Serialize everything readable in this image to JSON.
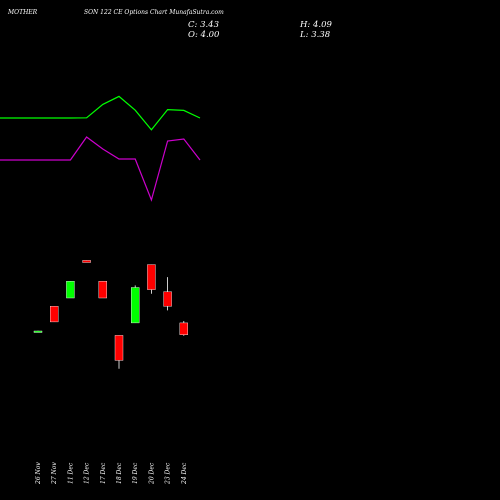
{
  "header": {
    "symbol": "MOTHER",
    "subtitle": "SON  122  CE Options  Chart MunafaSutra.com",
    "close_label": "C: 3.43",
    "open_label": "O: 4.00",
    "high_label": "H: 4.09",
    "low_label": "L: 3.38"
  },
  "chart_data": {
    "type": "candlestick",
    "background": "#000000",
    "up_color": "#00ff00",
    "down_color": "#ff0000",
    "categories": [
      "26 Nov",
      "27 Nov",
      "11 Dec",
      "12 Dec",
      "17 Dec",
      "18 Dec",
      "19 Dec",
      "20 Dec",
      "23 Dec",
      "24 Dec"
    ],
    "candles": [
      {
        "open": 3.6,
        "high": 3.62,
        "low": 3.58,
        "close": 3.61
      },
      {
        "open": 4.8,
        "high": 4.8,
        "low": 4.05,
        "close": 4.05
      },
      {
        "open": 5.2,
        "high": 6.0,
        "low": 5.2,
        "close": 6.0
      },
      {
        "open": 7.0,
        "high": 7.0,
        "low": 6.9,
        "close": 6.9
      },
      {
        "open": 6.0,
        "high": 6.0,
        "low": 5.2,
        "close": 5.2
      },
      {
        "open": 3.4,
        "high": 3.4,
        "low": 1.8,
        "close": 2.2
      },
      {
        "open": 4.0,
        "high": 5.8,
        "low": 4.0,
        "close": 5.7
      },
      {
        "open": 6.8,
        "high": 6.8,
        "low": 5.4,
        "close": 5.6
      },
      {
        "open": 5.5,
        "high": 6.2,
        "low": 4.6,
        "close": 4.8
      },
      {
        "open": 4.0,
        "high": 4.09,
        "low": 3.38,
        "close": 3.43
      }
    ],
    "price_range": [
      1.5,
      7.5
    ],
    "indicators": [
      {
        "color": "#00ff00",
        "values": [
          61.0,
          61.0,
          61.1,
          67.8,
          71.8,
          64.9,
          55.1,
          65.2,
          64.8,
          61.0
        ],
        "range": [
          0,
          100
        ]
      },
      {
        "color": "#cc00cc",
        "values": [
          40.0,
          40.0,
          51.5,
          45.5,
          40.5,
          40.5,
          20.0,
          49.5,
          50.5,
          40.0
        ],
        "range": [
          0,
          100
        ]
      }
    ]
  }
}
